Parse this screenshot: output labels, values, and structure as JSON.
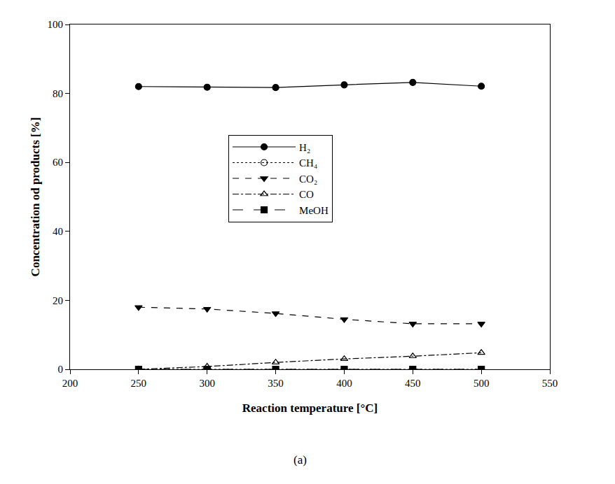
{
  "chart_data": {
    "type": "line",
    "x_label": "Reaction temperature [°C]",
    "y_label": "Concentration od products [%]",
    "caption": "(a)",
    "x": [
      250,
      300,
      350,
      400,
      450,
      500
    ],
    "series": [
      {
        "name": "H₂",
        "color": "#000000",
        "marker": "circle",
        "line_style": "solid",
        "values": [
          82,
          81.8,
          81.7,
          82.5,
          83.2,
          82.1
        ]
      },
      {
        "name": "CH₄",
        "color": "#000000",
        "marker": "circle-open",
        "line_style": "dot",
        "values": [
          0,
          0,
          0,
          0,
          0,
          0
        ]
      },
      {
        "name": "CO₂",
        "color": "#000000",
        "marker": "triangle-down",
        "line_style": "dash",
        "values": [
          18,
          17.5,
          16.2,
          14.5,
          13.2,
          13.2
        ]
      },
      {
        "name": "CO",
        "color": "#000000",
        "marker": "triangle-up-open",
        "line_style": "dashdot",
        "values": [
          0,
          0.8,
          2,
          3,
          3.8,
          4.8
        ]
      },
      {
        "name": "MeOH",
        "color": "#000000",
        "marker": "square",
        "line_style": "longdash",
        "values": [
          0,
          0,
          0,
          0,
          0,
          0
        ]
      }
    ],
    "xlim": [
      200,
      550
    ],
    "xticks": [
      200,
      250,
      300,
      350,
      400,
      450,
      500,
      550
    ],
    "ylim": [
      0,
      100
    ],
    "yticks": [
      0,
      20,
      40,
      60,
      80,
      100
    ],
    "grid": false,
    "legend": "center"
  }
}
